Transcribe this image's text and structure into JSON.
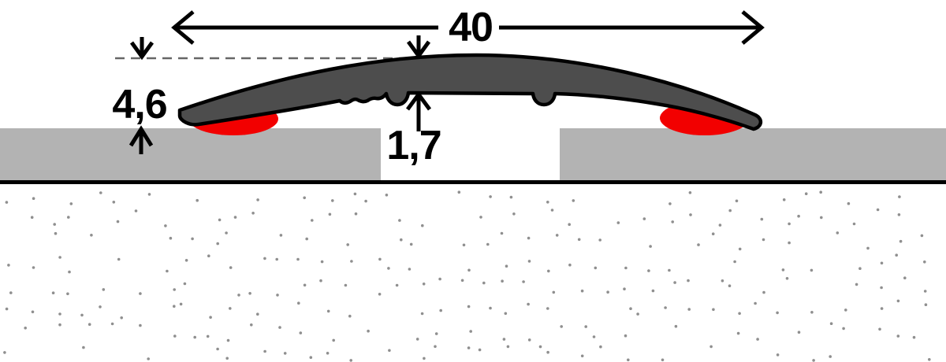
{
  "diagram": {
    "type": "technical-cross-section",
    "labels": {
      "width": "40",
      "height": "4,6",
      "thickness": "1,7"
    }
  },
  "colors": {
    "profile_fill": "#4d4d4d",
    "outline": "#000000",
    "adhesive_pad": "#f20000",
    "floor_fill": "#b3b3b3",
    "subfloor_line": "#000000",
    "subfloor_dots": "#8f8f8f",
    "dashed_line": "#666666",
    "dimension_ink": "#000000",
    "background": "#ffffff"
  }
}
